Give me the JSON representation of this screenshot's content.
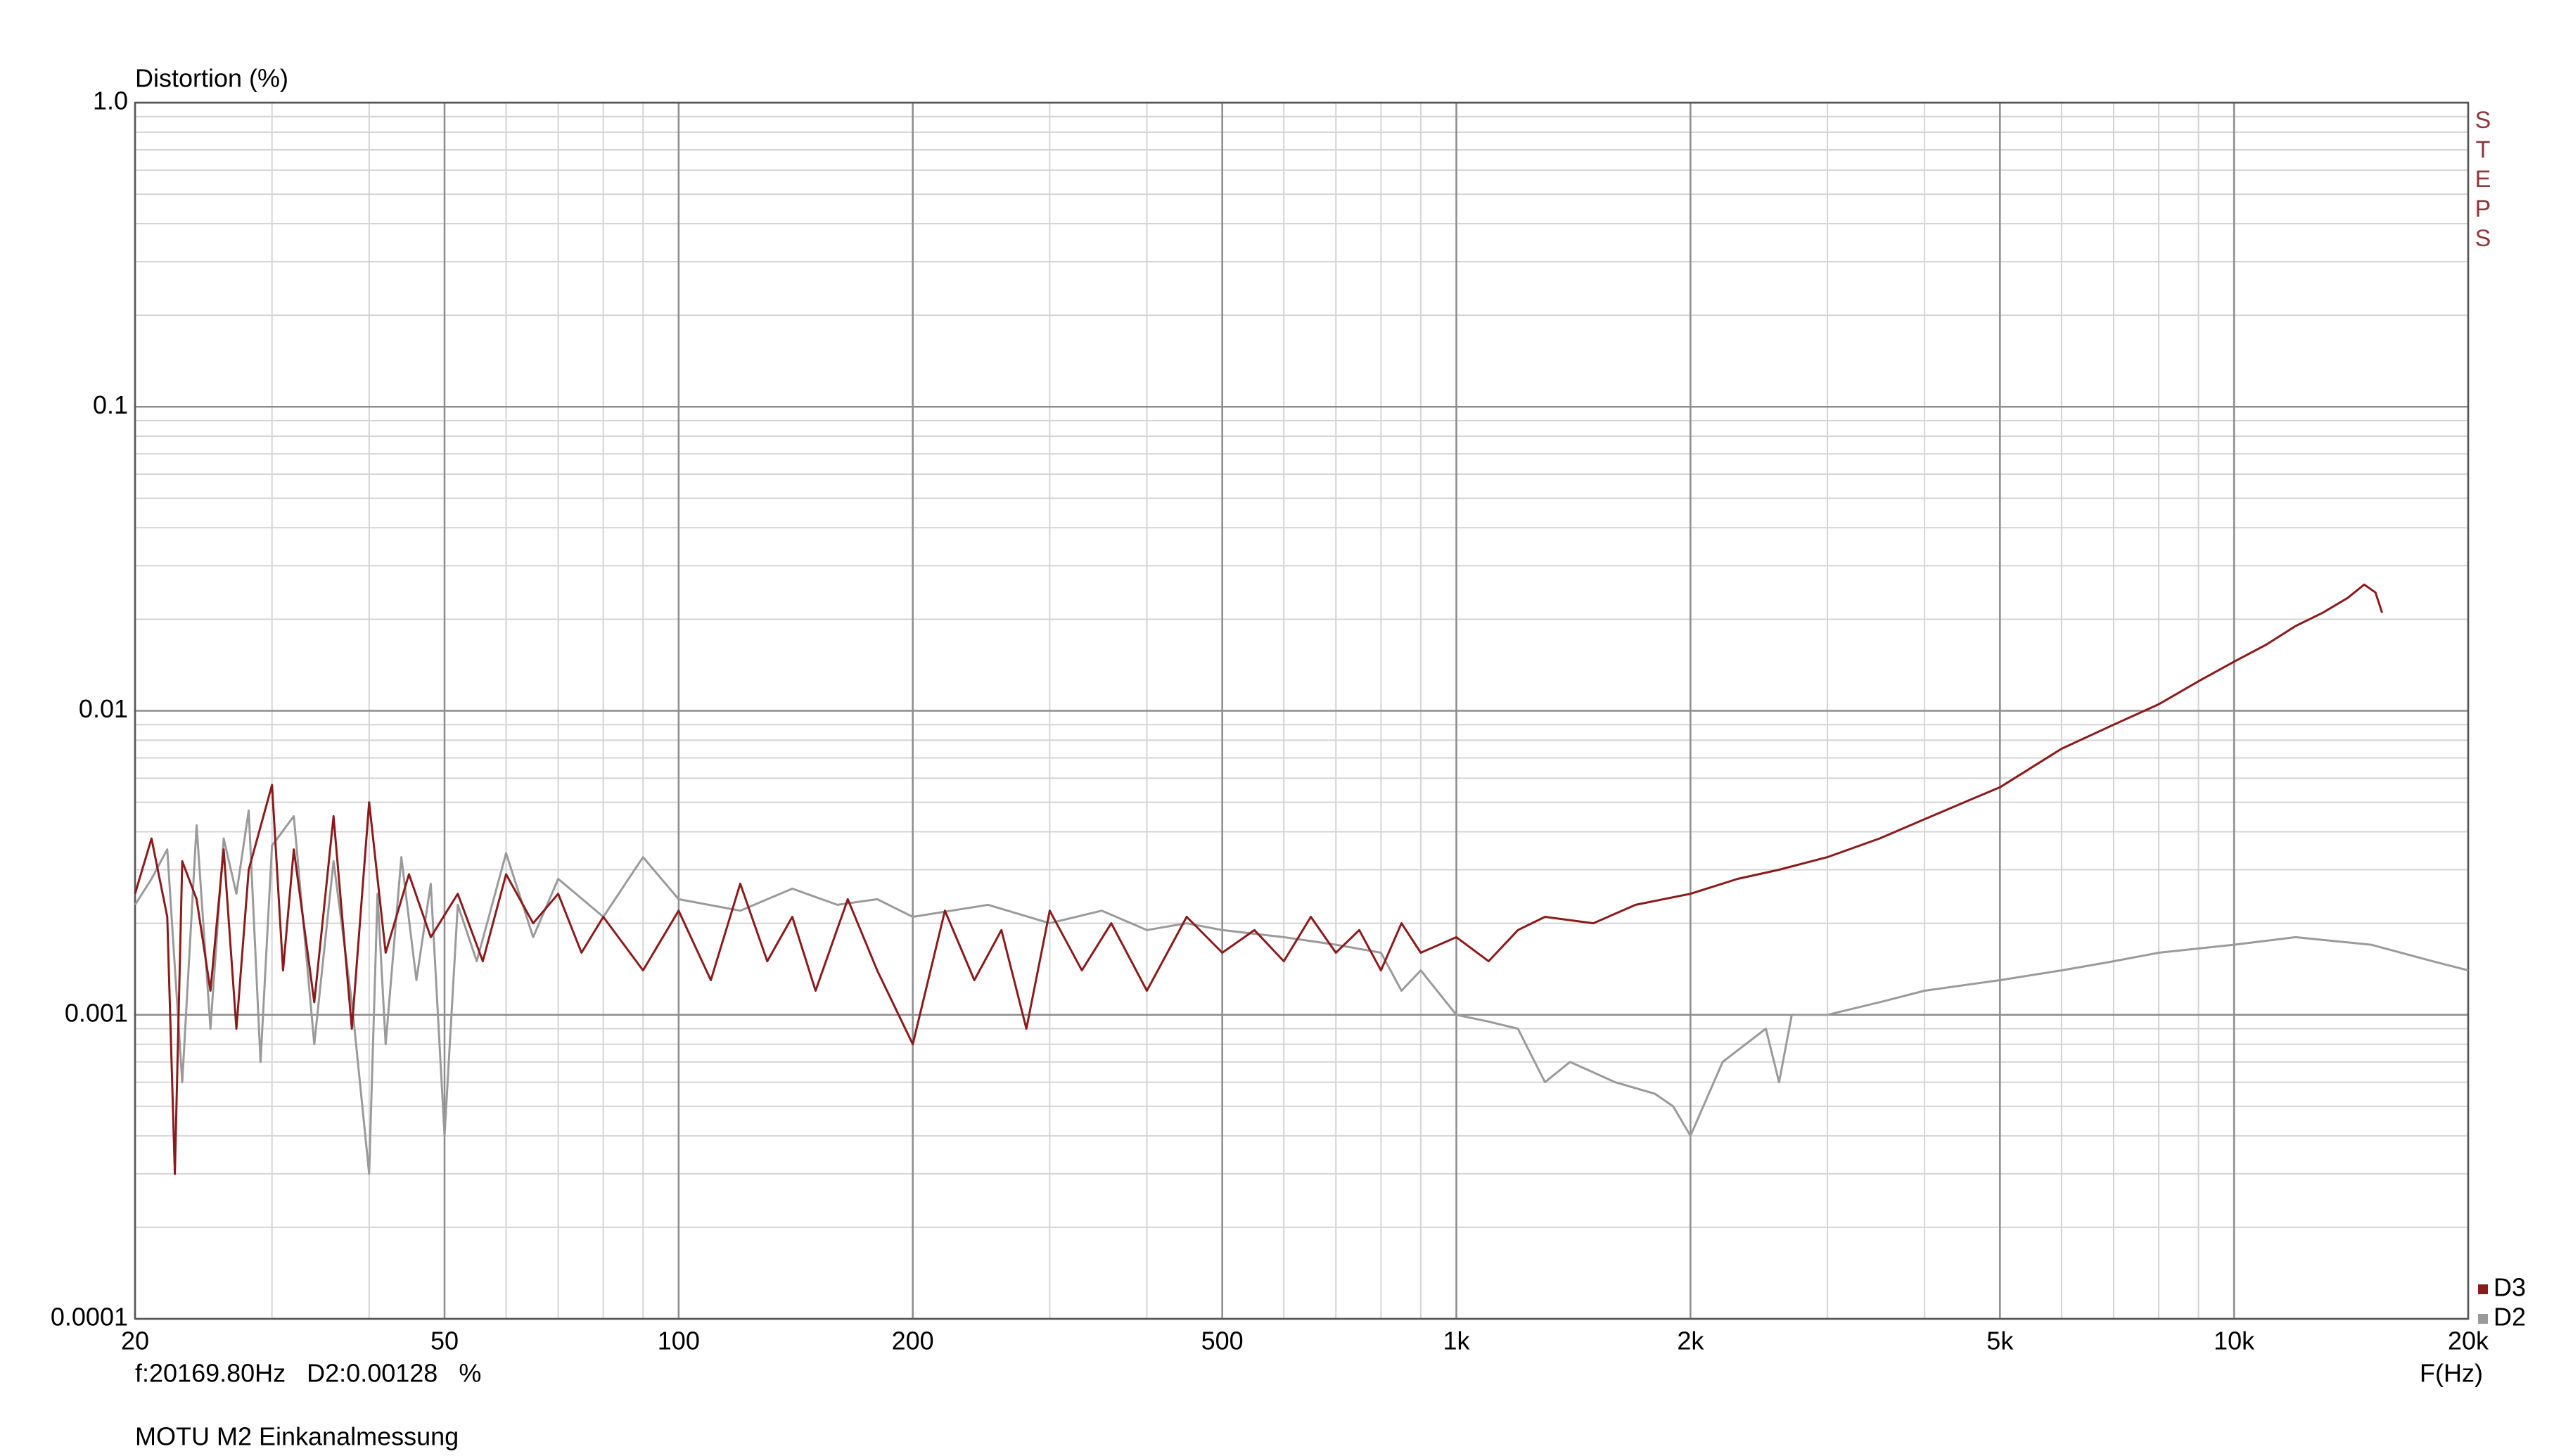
{
  "chart_data": {
    "type": "line",
    "y_label": "Distortion (%)",
    "x_label": "F(Hz)",
    "cursor": "f:20169.80Hz   D2:0.00128   %",
    "note": "MOTU M2 Einkanalmessung",
    "side_label": "STEPS",
    "log_x": true,
    "log_y": true,
    "grid": true,
    "xlim": [
      20,
      20000
    ],
    "ylim": [
      0.0001,
      1
    ],
    "xticks": [
      20,
      50,
      100,
      200,
      500,
      {
        "value": 1000,
        "label": "1k"
      },
      {
        "value": 2000,
        "label": "2k"
      },
      {
        "value": 5000,
        "label": "5k"
      },
      {
        "value": 10000,
        "label": "10k"
      },
      {
        "value": 20000,
        "label": "20k"
      }
    ],
    "yticks": [
      0.0001,
      0.001,
      0.01,
      0.1,
      {
        "value": 1,
        "label": "1.0"
      }
    ],
    "series": [
      {
        "name": "D3",
        "color": "#8b1a1a",
        "x": [
          20,
          21,
          22,
          22.5,
          23,
          24,
          25,
          26,
          27,
          28,
          30,
          31,
          32,
          34,
          36,
          38,
          40,
          42,
          45,
          48,
          52,
          56,
          60,
          65,
          70,
          75,
          80,
          90,
          100,
          110,
          120,
          130,
          140,
          150,
          165,
          180,
          200,
          220,
          240,
          260,
          280,
          300,
          330,
          360,
          400,
          450,
          500,
          550,
          600,
          650,
          700,
          750,
          800,
          850,
          900,
          1000,
          1100,
          1200,
          1300,
          1500,
          1700,
          2000,
          2300,
          2600,
          3000,
          3500,
          4000,
          4500,
          5000,
          6000,
          7000,
          8000,
          9000,
          10000,
          11000,
          12000,
          13000,
          14000,
          14700,
          15200,
          15500
        ],
        "values": [
          0.0025,
          0.0038,
          0.0021,
          0.0003,
          0.0032,
          0.0024,
          0.0012,
          0.0035,
          0.0009,
          0.003,
          0.0057,
          0.0014,
          0.0035,
          0.0011,
          0.0045,
          0.0009,
          0.005,
          0.0016,
          0.0029,
          0.0018,
          0.0025,
          0.0015,
          0.0029,
          0.002,
          0.0025,
          0.0016,
          0.0021,
          0.0014,
          0.0022,
          0.0013,
          0.0027,
          0.0015,
          0.0021,
          0.0012,
          0.0024,
          0.0014,
          0.0008,
          0.0022,
          0.0013,
          0.0019,
          0.0009,
          0.0022,
          0.0014,
          0.002,
          0.0012,
          0.0021,
          0.0016,
          0.0019,
          0.0015,
          0.0021,
          0.0016,
          0.0019,
          0.0014,
          0.002,
          0.0016,
          0.0018,
          0.0015,
          0.0019,
          0.0021,
          0.002,
          0.0023,
          0.0025,
          0.0028,
          0.003,
          0.0033,
          0.0038,
          0.0044,
          0.005,
          0.0056,
          0.0075,
          0.009,
          0.0105,
          0.0125,
          0.0145,
          0.0165,
          0.019,
          0.021,
          0.0235,
          0.026,
          0.0245,
          0.021
        ]
      },
      {
        "name": "D2",
        "color": "#9a9a9a",
        "x": [
          20,
          21,
          22,
          23,
          24,
          25,
          26,
          27,
          28,
          29,
          30,
          32,
          34,
          36,
          38,
          40,
          41,
          42,
          44,
          46,
          48,
          50,
          52,
          55,
          60,
          65,
          70,
          80,
          90,
          100,
          120,
          140,
          160,
          180,
          200,
          250,
          300,
          350,
          400,
          450,
          500,
          600,
          700,
          800,
          850,
          900,
          1000,
          1100,
          1200,
          1300,
          1400,
          1600,
          1800,
          1900,
          2000,
          2200,
          2500,
          2600,
          2700,
          3000,
          3500,
          4000,
          5000,
          6000,
          7000,
          8000,
          10000,
          12000,
          15000,
          18000,
          20000
        ],
        "values": [
          0.0023,
          0.0028,
          0.0035,
          0.0006,
          0.0042,
          0.0009,
          0.0038,
          0.0025,
          0.0047,
          0.0007,
          0.0036,
          0.0045,
          0.0008,
          0.0032,
          0.0011,
          0.0003,
          0.0025,
          0.0008,
          0.0033,
          0.0013,
          0.0027,
          0.0004,
          0.0023,
          0.0015,
          0.0034,
          0.0018,
          0.0028,
          0.0021,
          0.0033,
          0.0024,
          0.0022,
          0.0026,
          0.0023,
          0.0024,
          0.0021,
          0.0023,
          0.002,
          0.0022,
          0.0019,
          0.002,
          0.0019,
          0.0018,
          0.0017,
          0.0016,
          0.0012,
          0.0014,
          0.001,
          0.00095,
          0.0009,
          0.0006,
          0.0007,
          0.0006,
          0.00055,
          0.0005,
          0.0004,
          0.0007,
          0.0009,
          0.0006,
          0.001,
          0.001,
          0.0011,
          0.0012,
          0.0013,
          0.0014,
          0.0015,
          0.0016,
          0.0017,
          0.0018,
          0.0017,
          0.0015,
          0.0014
        ]
      }
    ]
  }
}
